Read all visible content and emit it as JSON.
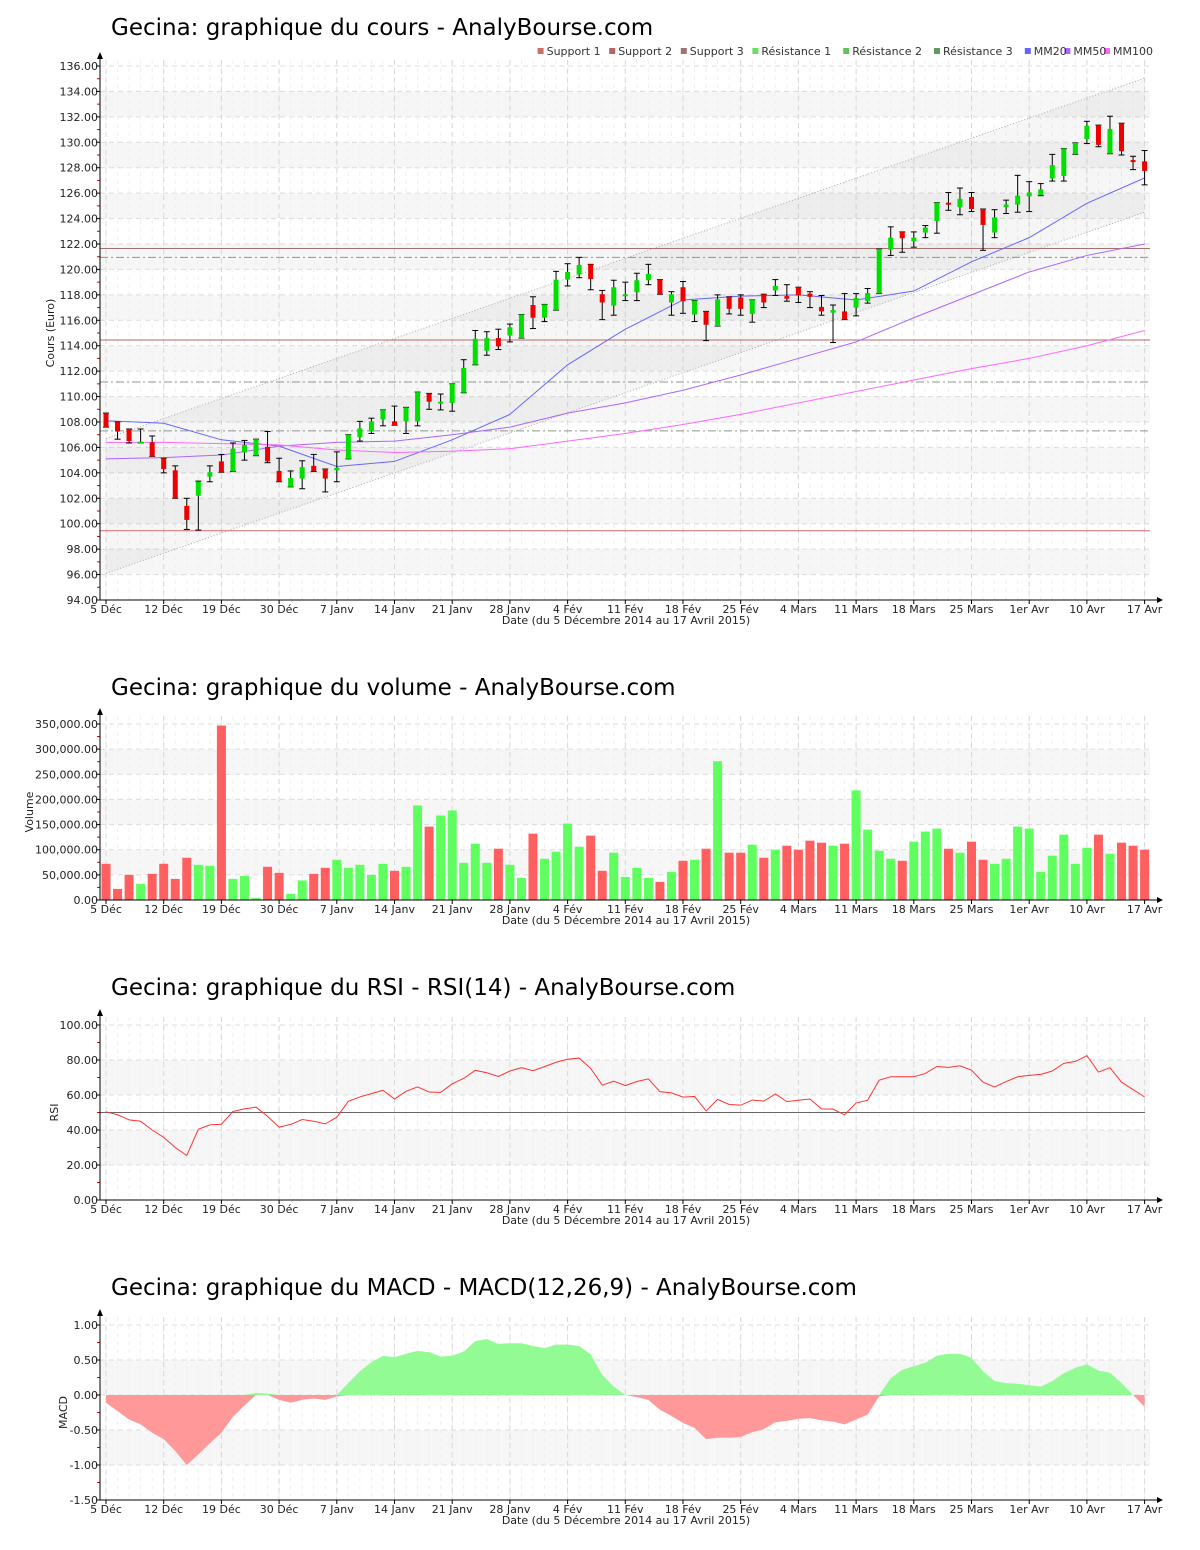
{
  "chart_data": [
    {
      "type": "candlestick",
      "title": "Gecina: graphique du cours - AnalyBourse.com",
      "xlabel": "Date (du 5 Décembre 2014 au 17 Avril 2015)",
      "ylabel": "Cours (Euro)",
      "ylim": [
        94,
        136
      ],
      "y_ticks": [
        "94.00",
        "96.00",
        "98.00",
        "100.00",
        "102.00",
        "104.00",
        "106.00",
        "108.00",
        "110.00",
        "112.00",
        "114.00",
        "116.00",
        "118.00",
        "120.00",
        "122.00",
        "124.00",
        "126.00",
        "128.00",
        "130.00",
        "132.00",
        "134.00",
        "136.00"
      ],
      "legend": [
        {
          "label": "Support 1",
          "color": "#d46a6a"
        },
        {
          "label": "Support 2",
          "color": "#b86464"
        },
        {
          "label": "Support 3",
          "color": "#a07272"
        },
        {
          "label": "Résistance 1",
          "color": "#66e066"
        },
        {
          "label": "Résistance 2",
          "color": "#5fc25f"
        },
        {
          "label": "Résistance 3",
          "color": "#5f9a5f"
        },
        {
          "label": "MM20",
          "color": "#6666ff"
        },
        {
          "label": "MM50",
          "color": "#aa66ff"
        },
        {
          "label": "MM100",
          "color": "#ff66ff"
        }
      ],
      "supports": [
        99.45,
        114.45,
        121.65
      ],
      "resistances": [
        107.3,
        111.15,
        120.95
      ],
      "channel": {
        "upper": [
          106.7,
          135.05
        ],
        "lower": [
          96.1,
          124.5
        ]
      },
      "ohlc": [
        [
          108.7,
          108.7,
          107.6,
          107.6
        ],
        [
          108.0,
          108.0,
          106.65,
          107.25
        ],
        [
          107.45,
          107.45,
          106.35,
          106.5
        ],
        [
          106.35,
          107.45,
          106.35,
          106.45
        ],
        [
          106.4,
          106.9,
          105.3,
          105.3
        ],
        [
          105.15,
          105.15,
          104.0,
          104.3
        ],
        [
          104.2,
          104.55,
          102.0,
          102.0
        ],
        [
          101.4,
          102.0,
          99.55,
          100.3
        ],
        [
          102.2,
          103.35,
          99.5,
          103.3
        ],
        [
          103.7,
          104.55,
          103.3,
          104.05
        ],
        [
          104.9,
          105.45,
          104.05,
          104.05
        ],
        [
          104.1,
          106.35,
          104.1,
          105.9
        ],
        [
          105.6,
          106.55,
          105.0,
          106.2
        ],
        [
          105.35,
          106.65,
          105.35,
          106.65
        ],
        [
          106.05,
          107.25,
          104.8,
          104.9
        ],
        [
          104.15,
          105.15,
          103.3,
          103.3
        ],
        [
          102.9,
          104.15,
          102.9,
          103.6
        ],
        [
          103.55,
          104.95,
          102.75,
          104.45
        ],
        [
          104.55,
          105.45,
          104.1,
          104.1
        ],
        [
          104.3,
          104.3,
          102.5,
          103.55
        ],
        [
          104.2,
          105.65,
          103.3,
          104.4
        ],
        [
          105.1,
          107.0,
          105.1,
          107.0
        ],
        [
          106.8,
          108.05,
          106.5,
          107.5
        ],
        [
          107.25,
          108.3,
          107.1,
          108.05
        ],
        [
          108.2,
          108.95,
          107.7,
          108.95
        ],
        [
          108.05,
          109.25,
          107.75,
          107.75
        ],
        [
          108.05,
          109.15,
          107.1,
          109.15
        ],
        [
          108.05,
          110.35,
          107.7,
          110.35
        ],
        [
          110.25,
          110.25,
          109.0,
          109.6
        ],
        [
          109.5,
          110.2,
          108.95,
          109.6
        ],
        [
          109.5,
          111.0,
          108.85,
          111.0
        ],
        [
          110.3,
          112.9,
          110.3,
          112.25
        ],
        [
          112.5,
          115.2,
          112.5,
          114.55
        ],
        [
          113.6,
          115.1,
          113.25,
          114.6
        ],
        [
          114.6,
          115.3,
          113.7,
          113.95
        ],
        [
          114.8,
          115.7,
          114.3,
          115.45
        ],
        [
          114.6,
          116.45,
          114.6,
          116.45
        ],
        [
          117.2,
          117.85,
          115.35,
          116.2
        ],
        [
          116.2,
          117.25,
          115.9,
          117.25
        ],
        [
          116.8,
          119.85,
          116.8,
          119.2
        ],
        [
          119.2,
          120.45,
          118.7,
          119.8
        ],
        [
          119.6,
          120.95,
          119.35,
          120.35
        ],
        [
          120.4,
          120.4,
          118.4,
          119.25
        ],
        [
          118.05,
          118.35,
          116.05,
          117.4
        ],
        [
          117.15,
          119.15,
          116.4,
          118.6
        ],
        [
          117.9,
          119.0,
          117.55,
          118.05
        ],
        [
          118.2,
          119.7,
          117.55,
          119.15
        ],
        [
          119.15,
          120.4,
          118.8,
          119.65
        ],
        [
          119.2,
          119.2,
          118.05,
          118.05
        ],
        [
          117.4,
          118.25,
          116.4,
          118.05
        ],
        [
          118.6,
          119.05,
          116.55,
          117.5
        ],
        [
          116.45,
          117.55,
          115.9,
          117.55
        ],
        [
          116.7,
          116.7,
          114.4,
          115.65
        ],
        [
          115.55,
          118.0,
          115.55,
          117.65
        ],
        [
          117.85,
          117.85,
          116.5,
          116.9
        ],
        [
          117.8,
          118.0,
          116.4,
          116.9
        ],
        [
          116.5,
          117.6,
          115.85,
          117.6
        ],
        [
          118.05,
          118.05,
          117.0,
          117.4
        ],
        [
          118.35,
          119.2,
          117.95,
          118.7
        ],
        [
          117.9,
          118.8,
          117.5,
          117.7
        ],
        [
          118.6,
          118.6,
          117.4,
          117.95
        ],
        [
          118.1,
          118.25,
          117.0,
          117.85
        ],
        [
          117.05,
          117.95,
          116.4,
          116.7
        ],
        [
          116.6,
          117.2,
          114.25,
          116.8
        ],
        [
          116.7,
          118.1,
          116.05,
          116.05
        ],
        [
          117.0,
          118.1,
          116.35,
          117.75
        ],
        [
          117.5,
          118.5,
          117.35,
          118.15
        ],
        [
          118.1,
          121.6,
          118.1,
          121.6
        ],
        [
          121.55,
          123.35,
          121.1,
          122.5
        ],
        [
          122.95,
          122.95,
          121.35,
          122.45
        ],
        [
          122.2,
          122.95,
          121.75,
          122.5
        ],
        [
          122.9,
          123.45,
          122.5,
          123.3
        ],
        [
          123.8,
          125.25,
          122.85,
          125.25
        ],
        [
          125.25,
          126.05,
          124.65,
          125.1
        ],
        [
          124.9,
          126.4,
          124.3,
          125.55
        ],
        [
          125.7,
          126.05,
          124.55,
          124.75
        ],
        [
          124.75,
          124.75,
          121.5,
          123.5
        ],
        [
          122.9,
          124.7,
          122.5,
          124.1
        ],
        [
          124.9,
          125.45,
          124.4,
          125.1
        ],
        [
          125.1,
          127.4,
          124.5,
          125.8
        ],
        [
          125.75,
          126.9,
          124.55,
          126.05
        ],
        [
          125.85,
          126.75,
          125.8,
          126.3
        ],
        [
          127.15,
          129.05,
          126.95,
          128.2
        ],
        [
          127.35,
          129.5,
          126.95,
          129.5
        ],
        [
          129.05,
          129.95,
          129.05,
          129.95
        ],
        [
          130.25,
          131.65,
          129.9,
          131.3
        ],
        [
          131.35,
          131.35,
          129.65,
          129.8
        ],
        [
          129.1,
          132.05,
          129.1,
          131.05
        ],
        [
          131.5,
          131.5,
          129.0,
          129.3
        ],
        [
          128.6,
          128.9,
          127.85,
          128.45
        ],
        [
          128.5,
          129.35,
          126.65,
          127.75
        ]
      ],
      "ma_sample_every": 5,
      "mm20": [
        108.1,
        107.9,
        106.6,
        106.1,
        104.5,
        104.9,
        106.6,
        108.6,
        112.5,
        115.3,
        117.6,
        117.9,
        118.0,
        117.6,
        118.3,
        120.6,
        122.5,
        125.2,
        127.2
      ],
      "mm50": [
        105.1,
        105.2,
        105.4,
        106.1,
        106.4,
        106.5,
        107.0,
        107.6,
        108.7,
        109.5,
        110.5,
        111.7,
        113.0,
        114.3,
        116.2,
        118.0,
        119.8,
        121.1,
        122.0
      ],
      "mm100": [
        106.4,
        106.4,
        106.3,
        106.2,
        105.8,
        105.6,
        105.7,
        105.9,
        106.5,
        107.1,
        107.8,
        108.6,
        109.5,
        110.4,
        111.3,
        112.2,
        113.0,
        114.0,
        115.2
      ]
    },
    {
      "type": "bar",
      "title": "Gecina: graphique du volume - AnalyBourse.com",
      "xlabel": "Date (du 5 Décembre 2014 au 17 Avril 2015)",
      "ylabel": "Volume",
      "ylim": [
        0,
        350000
      ],
      "y_ticks": [
        "0.00",
        "50,000.00",
        "100,000.00",
        "150,000.00",
        "200,000.00",
        "250,000.00",
        "300,000.00",
        "350,000.00"
      ],
      "values": [
        72000,
        22000,
        50000,
        32000,
        52000,
        72000,
        42000,
        84000,
        70000,
        68000,
        347000,
        42000,
        48000,
        4000,
        66000,
        54000,
        12000,
        39000,
        52000,
        64000,
        80000,
        64000,
        70000,
        50000,
        72000,
        58000,
        66000,
        188000,
        146000,
        168000,
        178000,
        74000,
        112000,
        74000,
        102000,
        70000,
        44000,
        132000,
        82000,
        96000,
        152000,
        106000,
        128000,
        58000,
        94000,
        46000,
        64000,
        44000,
        36000,
        56000,
        78000,
        80000,
        102000,
        276000,
        94000,
        94000,
        110000,
        84000,
        100000,
        108000,
        100000,
        118000,
        114000,
        108000,
        112000,
        218000,
        140000,
        98000,
        82000,
        78000,
        116000,
        136000,
        142000,
        102000,
        94000,
        116000,
        80000,
        72000,
        82000,
        146000,
        142000,
        56000,
        88000,
        130000,
        72000,
        104000,
        130000,
        92000,
        114000,
        108000,
        100000
      ],
      "colors": {
        "up": "#5fff5f",
        "down": "#ff5f5f"
      }
    },
    {
      "type": "line",
      "title": "Gecina: graphique du RSI - RSI(14) - AnalyBourse.com",
      "xlabel": "Date (du 5 Décembre 2014 au 17 Avril 2015)",
      "ylabel": "RSI",
      "ylim": [
        0,
        100
      ],
      "y_ticks": [
        "0.00",
        "20.00",
        "40.00",
        "60.00",
        "80.00",
        "100.00"
      ],
      "reference": 50,
      "values": [
        50.4,
        48.7,
        45.8,
        45,
        40,
        35.8,
        30,
        25.4,
        40.4,
        42.9,
        43.3,
        50.6,
        52.1,
        53.1,
        47.8,
        41.6,
        43.2,
        46,
        45,
        43.5,
        47.3,
        56.4,
        58.9,
        60.8,
        62.7,
        57.7,
        62.1,
        64.6,
        61.7,
        61.5,
        66.4,
        69.5,
        74.1,
        72.7,
        70.6,
        73.7,
        75.6,
        73.9,
        76.2,
        78.7,
        80.4,
        81.1,
        75.2,
        65.6,
        67.9,
        65.4,
        67.7,
        69.2,
        61.9,
        61.2,
        58.8,
        59.2,
        50.9,
        57.5,
        54.6,
        54.2,
        57.1,
        56.5,
        60.6,
        56.2,
        57,
        57.7,
        52.1,
        51.9,
        48.7,
        55.4,
        57,
        68.5,
        70.4,
        70.4,
        70.4,
        72.3,
        76.3,
        75.8,
        76.7,
        74.2,
        67.3,
        64.6,
        67.7,
        70.4,
        71.2,
        71.8,
        73.7,
        78.1,
        79.2,
        82.5,
        73.1,
        75.6,
        67.3,
        63.1,
        58.9
      ],
      "color": "#ff3333"
    },
    {
      "type": "area",
      "title": "Gecina: graphique du MACD - MACD(12,26,9) - AnalyBourse.com",
      "xlabel": "Date (du 5 Décembre 2014 au 17 Avril 2015)",
      "ylabel": "MACD",
      "ylim": [
        -1.5,
        1.0
      ],
      "y_ticks": [
        "-1.50",
        "-1.00",
        "-0.50",
        "0.00",
        "0.50",
        "1.00"
      ],
      "values": [
        -0.11,
        -0.23,
        -0.35,
        -0.42,
        -0.54,
        -0.63,
        -0.8,
        -1.0,
        -0.85,
        -0.69,
        -0.54,
        -0.31,
        -0.15,
        0.03,
        0.02,
        -0.07,
        -0.11,
        -0.07,
        -0.05,
        -0.07,
        -0.02,
        0.17,
        0.34,
        0.47,
        0.56,
        0.54,
        0.59,
        0.63,
        0.61,
        0.55,
        0.56,
        0.62,
        0.77,
        0.8,
        0.73,
        0.74,
        0.74,
        0.7,
        0.67,
        0.72,
        0.72,
        0.7,
        0.58,
        0.29,
        0.12,
        0.0,
        -0.03,
        -0.07,
        -0.21,
        -0.3,
        -0.4,
        -0.47,
        -0.63,
        -0.61,
        -0.61,
        -0.6,
        -0.53,
        -0.49,
        -0.39,
        -0.37,
        -0.34,
        -0.33,
        -0.36,
        -0.38,
        -0.42,
        -0.35,
        -0.28,
        -0.02,
        0.24,
        0.36,
        0.41,
        0.46,
        0.56,
        0.59,
        0.59,
        0.53,
        0.34,
        0.2,
        0.17,
        0.16,
        0.14,
        0.12,
        0.2,
        0.31,
        0.39,
        0.44,
        0.35,
        0.32,
        0.17,
        0.0,
        -0.17
      ],
      "colors": {
        "positive": "#93fb93",
        "negative": "#ff9999"
      }
    }
  ],
  "x_ticks": [
    {
      "label": "5 Déc",
      "index": 0
    },
    {
      "label": "12 Déc",
      "index": 5
    },
    {
      "label": "19 Déc",
      "index": 10
    },
    {
      "label": "30 Déc",
      "index": 15
    },
    {
      "label": "7 Janv",
      "index": 20
    },
    {
      "label": "14 Janv",
      "index": 25
    },
    {
      "label": "21 Janv",
      "index": 30
    },
    {
      "label": "28 Janv",
      "index": 35
    },
    {
      "label": "4 Fév",
      "index": 40
    },
    {
      "label": "11 Fév",
      "index": 45
    },
    {
      "label": "18 Fév",
      "index": 50
    },
    {
      "label": "25 Fév",
      "index": 55
    },
    {
      "label": "4 Mars",
      "index": 60
    },
    {
      "label": "11 Mars",
      "index": 65
    },
    {
      "label": "18 Mars",
      "index": 70
    },
    {
      "label": "25 Mars",
      "index": 75
    },
    {
      "label": "1er Avr",
      "index": 80
    },
    {
      "label": "10 Avr",
      "index": 85
    },
    {
      "label": "17 Avr",
      "index": 90
    }
  ]
}
